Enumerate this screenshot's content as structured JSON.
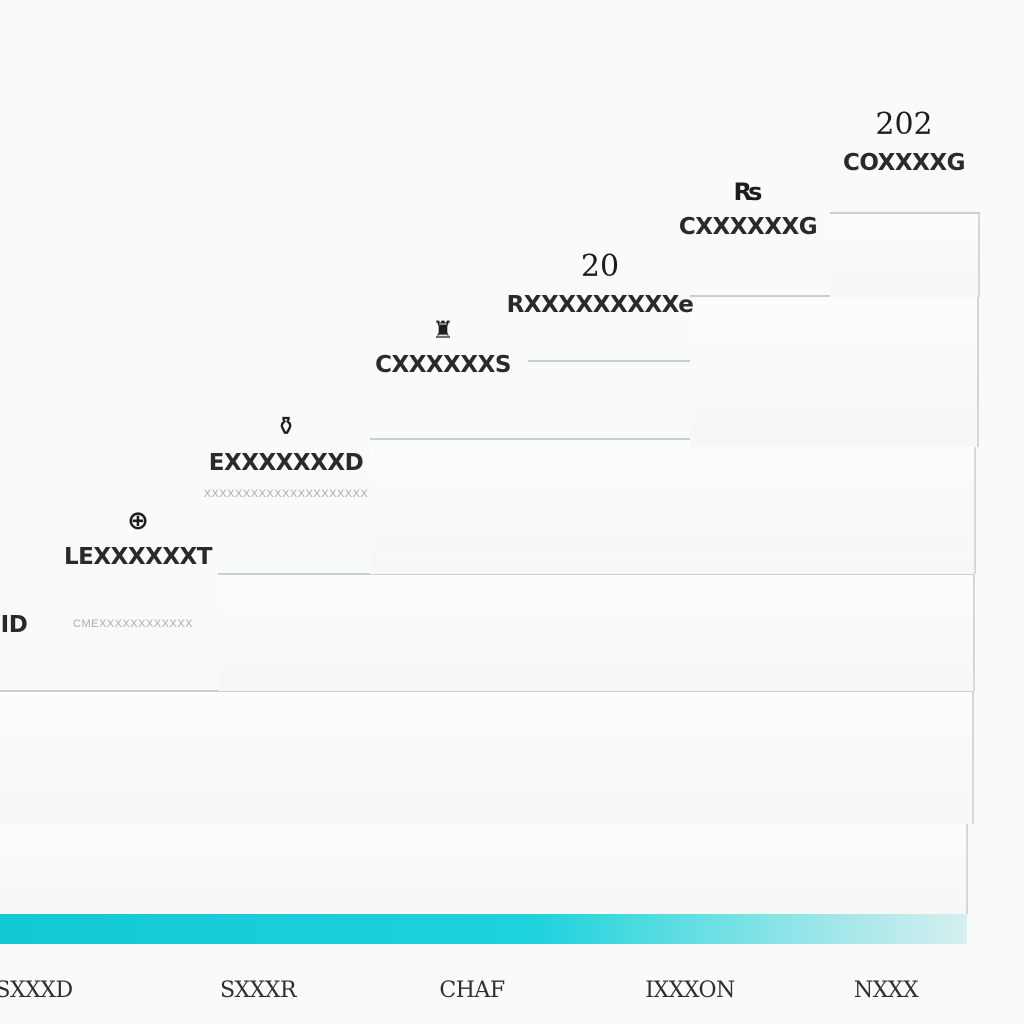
{
  "steps": [
    {
      "icon": "",
      "label": "ID",
      "sub": "CMEXXXXXXXXXXXX"
    },
    {
      "icon": "⊕",
      "label": "LEXXXXXXT",
      "sub": ""
    },
    {
      "icon": "⚱",
      "label": "EXXXXXXXD",
      "sub": "XXXXXXXXXXXXXXXXXXXXX"
    },
    {
      "icon": "♜",
      "label": "CXXXXXXS",
      "sub": ""
    },
    {
      "icon": "20",
      "label": "RXXXXXXXXXe",
      "sub": ""
    },
    {
      "icon": "₨",
      "label": "CXXXXXXG",
      "sub": ""
    },
    {
      "icon": "202",
      "label": "COXXXXG",
      "sub": ""
    }
  ],
  "axis_labels": [
    "SXXXD",
    "SXXXR",
    "CHAF",
    "IXXXON",
    "NXXX"
  ],
  "colors": {
    "accent": "#c0392b",
    "teal": "#12c9d6",
    "panel_border": "#c9cfd3"
  }
}
